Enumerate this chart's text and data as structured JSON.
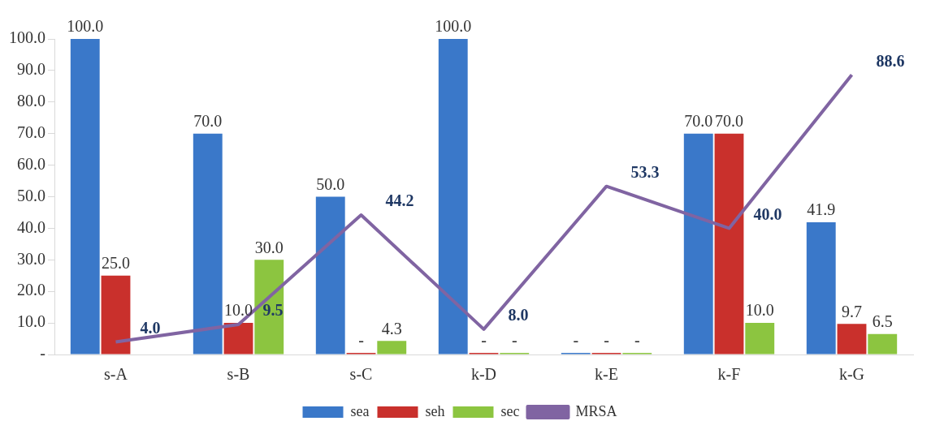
{
  "chart_data": {
    "type": "bar",
    "categories": [
      "s-A",
      "s-B",
      "s-C",
      "k-D",
      "k-E",
      "k-F",
      "k-G"
    ],
    "series": [
      {
        "name": "sea",
        "color": "#3a78c9",
        "values": [
          100,
          70,
          50,
          100,
          0,
          70,
          41.9
        ],
        "value_labels": [
          "100.0",
          "70.0",
          "50.0",
          "100.0",
          "-",
          "70.0",
          "41.9"
        ]
      },
      {
        "name": "seh",
        "color": "#c9302c",
        "values": [
          25,
          10,
          0,
          0,
          0,
          70,
          9.7
        ],
        "value_labels": [
          "25.0",
          "10.0",
          "-",
          "-",
          "-",
          "70.0",
          "9.7"
        ]
      },
      {
        "name": "sec",
        "color": "#8cc540",
        "values": [
          null,
          30,
          4.3,
          0,
          0,
          10,
          6.5
        ],
        "value_labels": [
          null,
          "30.0",
          "4.3",
          "-",
          "-",
          "10.0",
          "6.5"
        ]
      },
      {
        "name": "MRSA",
        "type": "line",
        "color": "#8064a2",
        "values": [
          4.0,
          9.5,
          44.2,
          8.0,
          53.3,
          40.0,
          88.6
        ],
        "value_labels": [
          "4.0",
          "9.5",
          "44.2",
          "8.0",
          "53.3",
          "40.0",
          "88.6"
        ]
      }
    ],
    "ylim": [
      0,
      100
    ],
    "yticks": [
      {
        "value": 0,
        "label": "-"
      },
      {
        "value": 10,
        "label": "10.0"
      },
      {
        "value": 20,
        "label": "20.0"
      },
      {
        "value": 30,
        "label": "30.0"
      },
      {
        "value": 40,
        "label": "40.0"
      },
      {
        "value": 50,
        "label": "50.0"
      },
      {
        "value": 60,
        "label": "60.0"
      },
      {
        "value": 70,
        "label": "70.0"
      },
      {
        "value": 80,
        "label": "80.0"
      },
      {
        "value": 90,
        "label": "90.0"
      },
      {
        "value": 100,
        "label": "100.0"
      }
    ],
    "grid": false,
    "legend": "bottom",
    "marker": "none"
  }
}
